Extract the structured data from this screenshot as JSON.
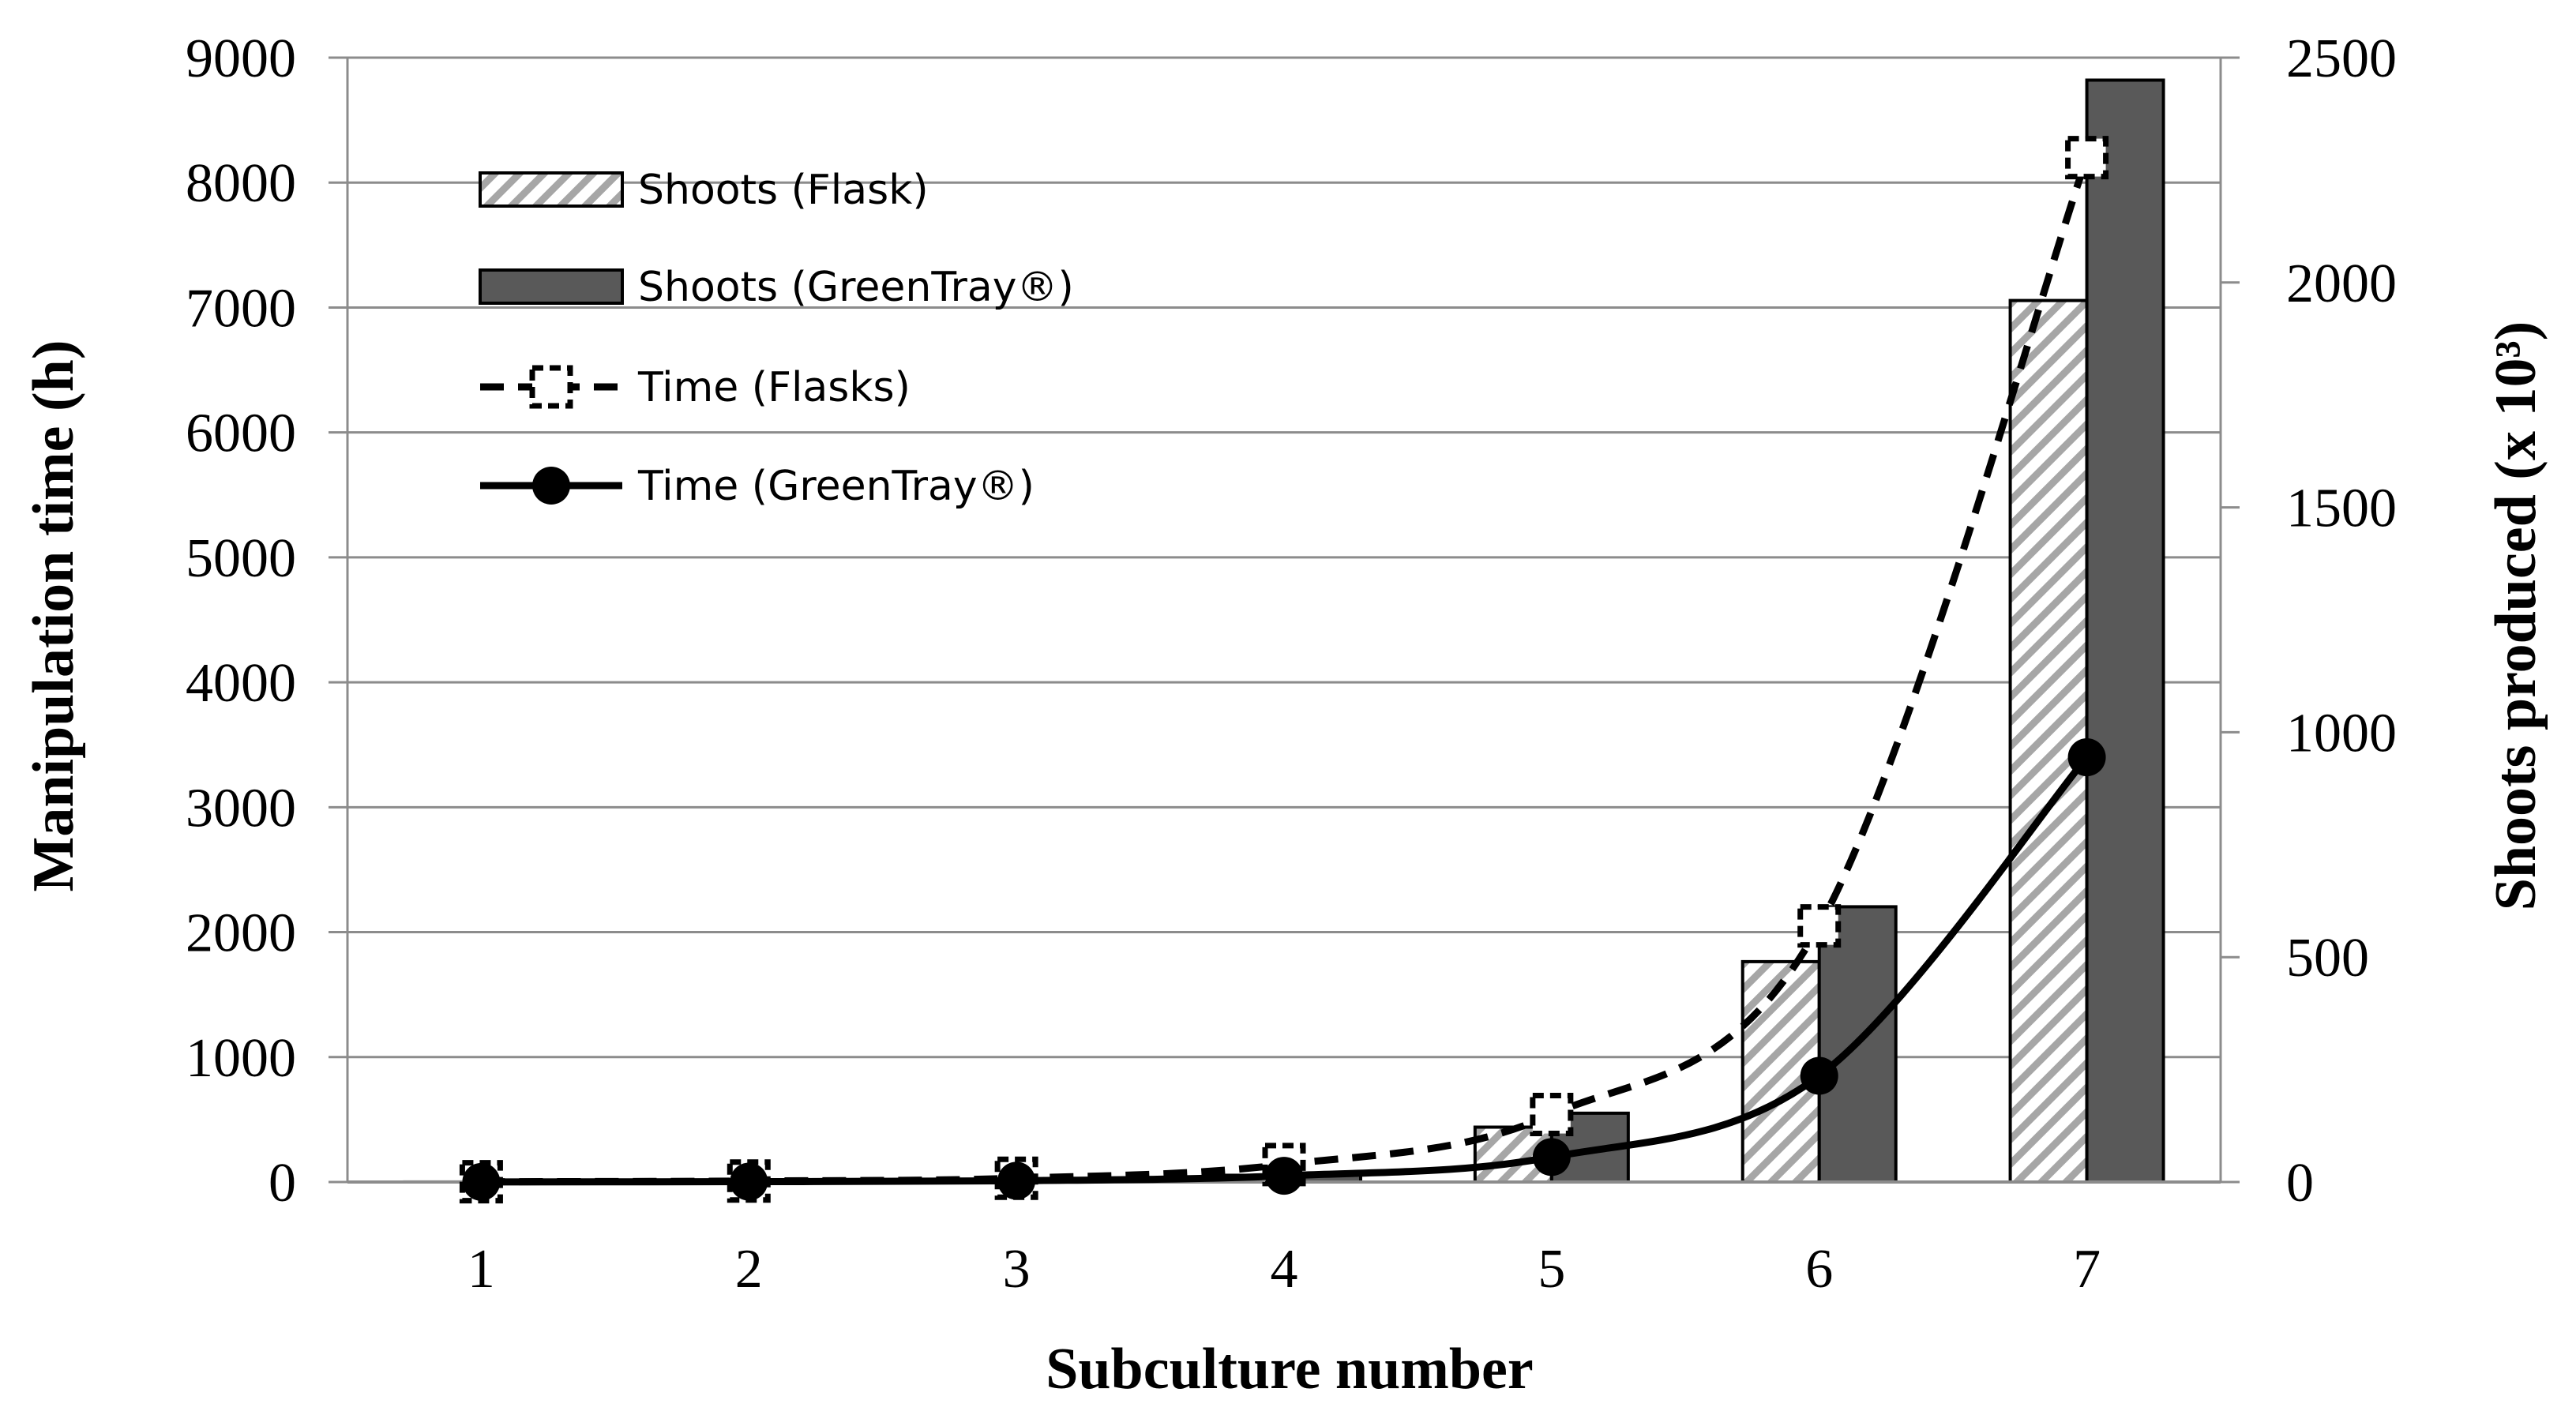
{
  "chart_data": {
    "type": "bar",
    "categories": [
      "1",
      "2",
      "3",
      "4",
      "5",
      "6",
      "7"
    ],
    "xlabel": "Subculture number",
    "ylabel": "Manipulation time (h)",
    "y2label": "Shoots produced (x 10³)",
    "ylim": [
      0,
      9000
    ],
    "y2lim": [
      0,
      2500
    ],
    "yticks": [
      "0",
      "1000",
      "2000",
      "3000",
      "4000",
      "5000",
      "6000",
      "7000",
      "8000",
      "9000"
    ],
    "y2ticks": [
      "0",
      "500",
      "1000",
      "1500",
      "2000",
      "2500"
    ],
    "grid": true,
    "legend_position": "top-left",
    "series": [
      {
        "name": "Shoots (Flask)",
        "kind": "bar",
        "axis": "right",
        "pattern": "diagonal-hatch",
        "color": "#a6a6a6",
        "values": [
          0.1,
          0.6,
          3,
          15,
          122,
          490,
          1960
        ]
      },
      {
        "name": "Shoots (GreenTray®)",
        "kind": "bar",
        "axis": "right",
        "color": "#595959",
        "values": [
          0.1,
          0.8,
          4,
          20,
          153,
          612,
          2450
        ]
      },
      {
        "name": "Time (Flasks)",
        "kind": "line",
        "axis": "left",
        "style": "dashed",
        "marker": "square",
        "values": [
          2,
          8,
          30,
          140,
          540,
          2050,
          8200
        ]
      },
      {
        "name": "Time (GreenTray®)",
        "kind": "line",
        "axis": "left",
        "style": "solid",
        "marker": "circle",
        "values": [
          1,
          3,
          10,
          50,
          200,
          850,
          3400
        ]
      }
    ]
  }
}
